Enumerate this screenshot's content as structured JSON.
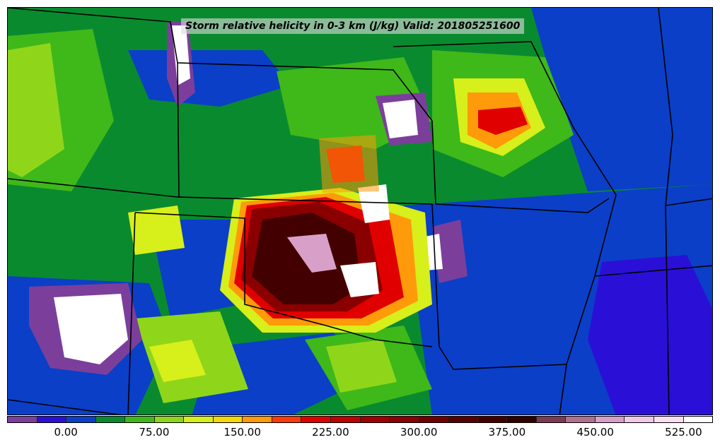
{
  "title": "Storm relative helicity in 0-3 km (J/kg) Valid: 201805251600",
  "colorbar": {
    "colors": [
      "#7b3f9b",
      "#2a10d6",
      "#0b3fc7",
      "#0a8a2f",
      "#3fb81a",
      "#8fd61a",
      "#d7ef1a",
      "#f4d80a",
      "#ff9a0a",
      "#ff3b0a",
      "#e00000",
      "#c00000",
      "#a00000",
      "#8a0000",
      "#6e0000",
      "#550000",
      "#420000",
      "#2e0000",
      "#7a3b53",
      "#b07090",
      "#d8a0c8",
      "#f0c8e8",
      "#f8dff2",
      "#ffffff"
    ],
    "ticks": [
      "0.00",
      "75.00",
      "150.00",
      "225.00",
      "300.00",
      "375.00",
      "450.00",
      "525.00"
    ]
  },
  "colors": {
    "background_green": "#0a8a2f",
    "blue": "#0b3fc7",
    "dark_blue": "#2a10d6",
    "purple": "#7b3f9b",
    "yellow_green": "#8fd61a",
    "light_green": "#3fb81a",
    "yellow": "#d7ef1a",
    "orange": "#ff9a0a",
    "red": "#e00000",
    "dark_red": "#6e0000",
    "maroon": "#420000",
    "pink": "#d8a0c8",
    "white": "#ffffff"
  }
}
